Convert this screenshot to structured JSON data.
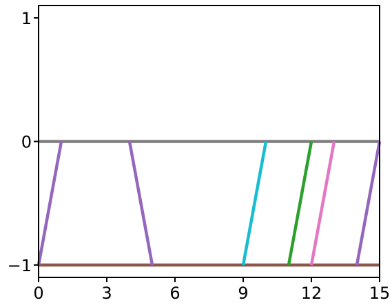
{
  "chart_data": {
    "type": "line",
    "title": "",
    "xlabel": "",
    "ylabel": "",
    "xlim": [
      0,
      15
    ],
    "ylim": [
      -1.1,
      1.1
    ],
    "grid": false,
    "legend": "none",
    "x_ticks": [
      0,
      3,
      6,
      9,
      12,
      15
    ],
    "x_tick_labels": [
      "0",
      "3",
      "6",
      "9",
      "12",
      "15"
    ],
    "y_ticks": [
      -1,
      0,
      1
    ],
    "y_tick_labels": [
      "−1",
      "0",
      "1"
    ],
    "series": [
      {
        "color": "#8c564b",
        "x": [
          0,
          15
        ],
        "y": [
          -1,
          -1
        ]
      },
      {
        "color": "#7f7f7f",
        "x": [
          0,
          15
        ],
        "y": [
          0,
          0
        ]
      },
      {
        "color": "#9467bd",
        "x": [
          0,
          1
        ],
        "y": [
          -1,
          0
        ]
      },
      {
        "color": "#9467bd",
        "x": [
          4,
          5
        ],
        "y": [
          0,
          -1
        ]
      },
      {
        "color": "#17becf",
        "x": [
          9,
          10
        ],
        "y": [
          -1,
          0
        ]
      },
      {
        "color": "#2ca02c",
        "x": [
          11,
          12
        ],
        "y": [
          -1,
          0
        ]
      },
      {
        "color": "#e377c2",
        "x": [
          12,
          13
        ],
        "y": [
          -1,
          0
        ]
      },
      {
        "color": "#9467bd",
        "x": [
          14,
          15
        ],
        "y": [
          -1,
          0
        ]
      }
    ]
  }
}
